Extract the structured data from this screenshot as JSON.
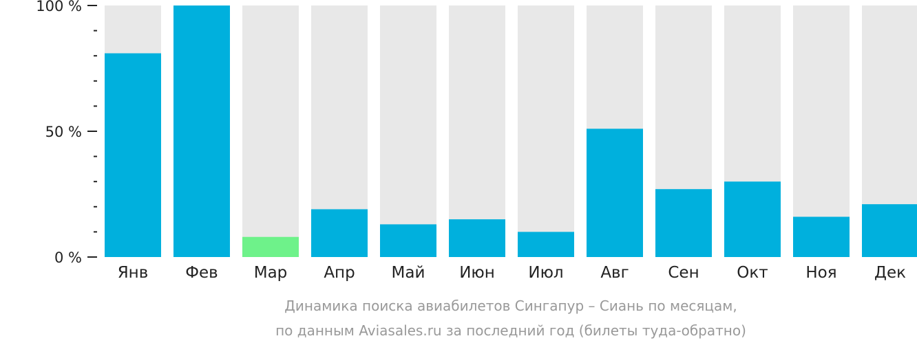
{
  "chart_data": {
    "type": "bar",
    "categories": [
      "Янв",
      "Фев",
      "Мар",
      "Апр",
      "Май",
      "Июн",
      "Июл",
      "Авг",
      "Сен",
      "Окт",
      "Ноя",
      "Дек"
    ],
    "values": [
      81,
      100,
      8,
      19,
      13,
      15,
      10,
      51,
      27,
      30,
      16,
      21
    ],
    "ylim": [
      0,
      100
    ],
    "yticks": [
      {
        "value": 0,
        "label": "0 %"
      },
      {
        "value": 50,
        "label": "50 %"
      },
      {
        "value": 100,
        "label": "100 %"
      }
    ],
    "minor_tick_step": 10,
    "highlight_category": "Мар",
    "colors": {
      "bar": "#00b0dd",
      "highlight": "#6ef28a",
      "track": "#e8e8e8",
      "axis": "#222222"
    },
    "caption": [
      "Динамика поиска авиабилетов Сингапур – Сиань по месяцам,",
      "по данным Aviasales.ru за последний год (билеты туда-обратно)"
    ],
    "grid": false,
    "legend": "none"
  }
}
